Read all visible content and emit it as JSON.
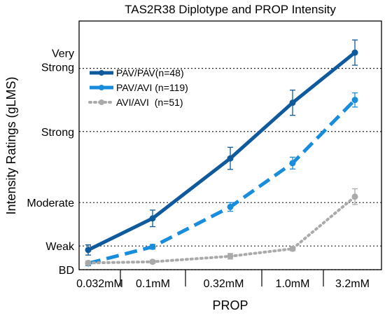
{
  "chart_data": {
    "type": "line",
    "title": "TAS2R38 Diplotype and PROP Intensity",
    "xlabel": "PROP",
    "ylabel": "Intensity Ratings (gLMS)",
    "categories": [
      "0.032mM",
      "0.1mM",
      "0.32mM",
      "1.0mM",
      "3.2mM"
    ],
    "ylim": [
      0,
      63
    ],
    "y_reference_lines": [
      {
        "value": 0,
        "label": "BD"
      },
      {
        "value": 6,
        "label": "Weak"
      },
      {
        "value": 17,
        "label": "Moderate"
      },
      {
        "value": 35,
        "label": "Strong"
      },
      {
        "value": 51,
        "label": "Very Strong"
      }
    ],
    "legend_position": "top-left",
    "grid": false,
    "series": [
      {
        "name": "PAV/PAV(n=48)",
        "color": "#0f5a9c",
        "style": "solid",
        "values": [
          5.0,
          13.0,
          28.2,
          42.3,
          55.0
        ],
        "errors": [
          1.3,
          2.1,
          2.8,
          3.2,
          3.2
        ]
      },
      {
        "name": "PAV/AVI (n=119)",
        "color": "#1a8cdc",
        "style": "dashed",
        "values": [
          1.6,
          5.8,
          15.9,
          27.0,
          43.0
        ],
        "errors": [
          0.6,
          0.6,
          1.1,
          1.5,
          1.8
        ]
      },
      {
        "name": "AVI/AVI  (n=51)",
        "color": "#aaaaaa",
        "style": "dotted",
        "values": [
          1.7,
          2.0,
          3.4,
          5.3,
          18.5
        ],
        "errors": [
          0.5,
          0.4,
          0.7,
          0.5,
          2.0
        ]
      }
    ]
  }
}
